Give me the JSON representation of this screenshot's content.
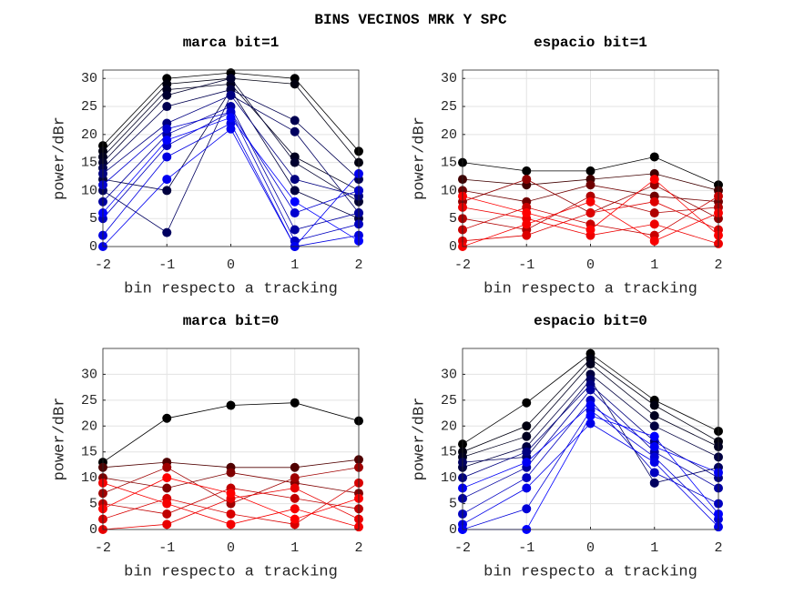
{
  "figure_title": "BINS VECINOS MRK Y SPC",
  "chart_data": [
    {
      "type": "line",
      "title": "marca bit=1",
      "xlabel": "bin respecto a tracking",
      "ylabel": "power/dBr",
      "x": [
        -2,
        -1,
        0,
        1,
        2
      ],
      "xlim": [
        -2,
        2
      ],
      "xticks": [
        -2,
        -1,
        0,
        1,
        2
      ],
      "ylim": [
        0,
        31.5
      ],
      "yticks": [
        0,
        5,
        10,
        15,
        20,
        25,
        30
      ],
      "grid": true,
      "series": [
        {
          "color": "#000000",
          "values": [
            18,
            30,
            31,
            30,
            17
          ]
        },
        {
          "color": "#000010",
          "values": [
            17,
            29,
            30,
            29,
            15
          ]
        },
        {
          "color": "#000020",
          "values": [
            16,
            28,
            29,
            16,
            10
          ]
        },
        {
          "color": "#000030",
          "values": [
            15,
            27,
            30,
            15,
            8
          ]
        },
        {
          "color": "#000050",
          "values": [
            14,
            25,
            28,
            22.5,
            12
          ]
        },
        {
          "color": "#000040",
          "values": [
            12,
            10,
            28,
            10,
            5
          ]
        },
        {
          "color": "#000060",
          "values": [
            10,
            2.5,
            27,
            20.5,
            6
          ]
        },
        {
          "color": "#000080",
          "values": [
            13,
            22,
            27,
            12,
            9
          ]
        },
        {
          "color": "#0000a0",
          "values": [
            8,
            20,
            25,
            3,
            6
          ]
        },
        {
          "color": "#0000c0",
          "values": [
            5,
            18,
            24,
            1,
            4
          ]
        },
        {
          "color": "#0000d0",
          "values": [
            11,
            21,
            24,
            6,
            10
          ]
        },
        {
          "color": "#0000e0",
          "values": [
            2,
            16,
            22,
            0,
            2
          ]
        },
        {
          "color": "#0000f0",
          "values": [
            0,
            12,
            21,
            0,
            13
          ]
        },
        {
          "color": "#0000ff",
          "values": [
            6,
            19,
            23,
            8,
            1
          ]
        }
      ]
    },
    {
      "type": "line",
      "title": "espacio bit=1",
      "xlabel": "bin respecto a tracking",
      "ylabel": "power/dBr",
      "x": [
        -2,
        -1,
        0,
        1,
        2
      ],
      "xlim": [
        -2,
        2
      ],
      "xticks": [
        -2,
        -1,
        0,
        1,
        2
      ],
      "ylim": [
        0,
        31.5
      ],
      "yticks": [
        0,
        5,
        10,
        15,
        20,
        25,
        30
      ],
      "grid": true,
      "series": [
        {
          "color": "#000000",
          "values": [
            15,
            13.5,
            13.5,
            16,
            11
          ]
        },
        {
          "color": "#400000",
          "values": [
            12,
            11,
            12,
            13,
            10
          ]
        },
        {
          "color": "#700000",
          "values": [
            10,
            8,
            11,
            9,
            8
          ]
        },
        {
          "color": "#900000",
          "values": [
            8,
            12,
            6,
            11,
            5
          ]
        },
        {
          "color": "#b00000",
          "values": [
            5,
            3,
            9,
            6,
            7
          ]
        },
        {
          "color": "#c80000",
          "values": [
            3,
            7,
            4,
            2,
            9
          ]
        },
        {
          "color": "#dd0000",
          "values": [
            1,
            2,
            6,
            8,
            3
          ]
        },
        {
          "color": "#ee0000",
          "values": [
            7,
            5,
            2,
            4,
            0.5
          ]
        },
        {
          "color": "#f80000",
          "values": [
            0,
            4,
            8,
            1,
            6
          ]
        },
        {
          "color": "#ff0000",
          "values": [
            9,
            6,
            3,
            12,
            2
          ]
        }
      ]
    },
    {
      "type": "line",
      "title": "marca bit=0",
      "xlabel": "bin respecto a tracking",
      "ylabel": "power/dBr",
      "x": [
        -2,
        -1,
        0,
        1,
        2
      ],
      "xlim": [
        -2,
        2
      ],
      "xticks": [
        -2,
        -1,
        0,
        1,
        2
      ],
      "ylim": [
        0,
        35
      ],
      "yticks": [
        0,
        5,
        10,
        15,
        20,
        25,
        30
      ],
      "grid": true,
      "series": [
        {
          "color": "#000000",
          "values": [
            13,
            21.5,
            24,
            24.5,
            21
          ]
        },
        {
          "color": "#500000",
          "values": [
            12,
            13,
            12,
            12,
            13.5
          ]
        },
        {
          "color": "#800000",
          "values": [
            10,
            8,
            11,
            9,
            7
          ]
        },
        {
          "color": "#a00000",
          "values": [
            7,
            12,
            5,
            10,
            12
          ]
        },
        {
          "color": "#c00000",
          "values": [
            5,
            3,
            8,
            6,
            4
          ]
        },
        {
          "color": "#d80000",
          "values": [
            2,
            6,
            3,
            1,
            9
          ]
        },
        {
          "color": "#e80000",
          "values": [
            0,
            1,
            6,
            8,
            2
          ]
        },
        {
          "color": "#f50000",
          "values": [
            9,
            5,
            1,
            4,
            0.5
          ]
        },
        {
          "color": "#ff0000",
          "values": [
            4,
            10,
            7,
            2,
            6
          ]
        }
      ]
    },
    {
      "type": "line",
      "title": "espacio bit=0",
      "xlabel": "bin respecto a tracking",
      "ylabel": "power/dBr",
      "x": [
        -2,
        -1,
        0,
        1,
        2
      ],
      "xlim": [
        -2,
        2
      ],
      "xticks": [
        -2,
        -1,
        0,
        1,
        2
      ],
      "ylim": [
        0,
        35
      ],
      "yticks": [
        0,
        5,
        10,
        15,
        20,
        25,
        30
      ],
      "grid": true,
      "series": [
        {
          "color": "#000000",
          "values": [
            16.5,
            24.5,
            34,
            25,
            19
          ]
        },
        {
          "color": "#000010",
          "values": [
            15,
            20,
            33,
            24,
            17
          ]
        },
        {
          "color": "#000020",
          "values": [
            14,
            18,
            32,
            22,
            16
          ]
        },
        {
          "color": "#000040",
          "values": [
            12,
            16,
            30,
            20,
            14
          ]
        },
        {
          "color": "#000060",
          "values": [
            13,
            14,
            29,
            9,
            12
          ]
        },
        {
          "color": "#000080",
          "values": [
            10,
            15,
            28,
            17,
            10
          ]
        },
        {
          "color": "#0000a0",
          "values": [
            6,
            12,
            27,
            15,
            8
          ]
        },
        {
          "color": "#0000c0",
          "values": [
            3,
            10,
            25,
            11,
            5
          ]
        },
        {
          "color": "#0000d8",
          "values": [
            0,
            4,
            23,
            14,
            2
          ]
        },
        {
          "color": "#0000e8",
          "values": [
            1,
            8,
            20.5,
            13,
            0.5
          ]
        },
        {
          "color": "#0000f5",
          "values": [
            8,
            13,
            24,
            16,
            11
          ]
        },
        {
          "color": "#0000ff",
          "values": [
            0,
            0,
            22,
            18,
            3
          ]
        }
      ]
    }
  ]
}
